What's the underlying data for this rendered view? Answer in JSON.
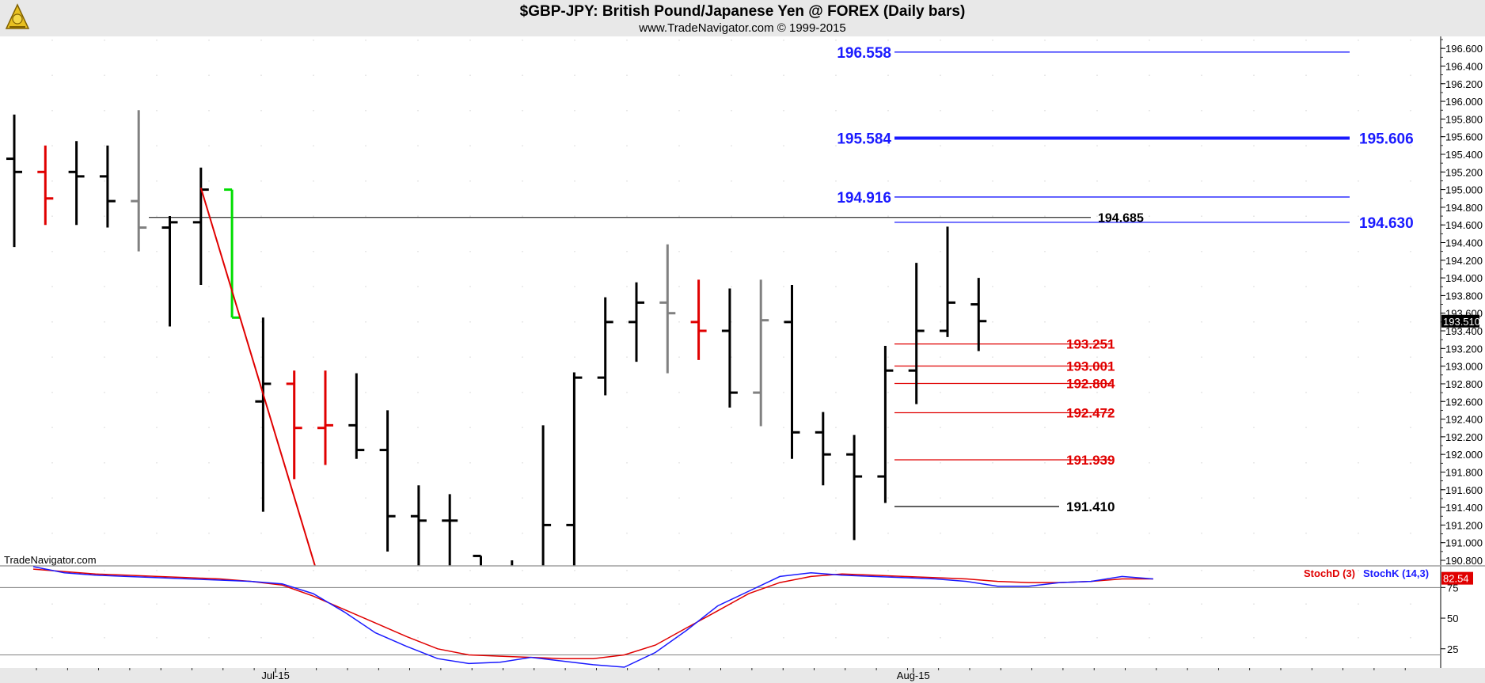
{
  "header": {
    "title": "$GBP-JPY:  British Pound/Japanese Yen @ FOREX  (Daily bars)",
    "subtitle": "www.TradeNavigator.com © 1999-2015",
    "logo_icon": "sextant-logo-icon"
  },
  "watermark": "TradeNavigator.com",
  "last_price_label": "193.510",
  "colors": {
    "up": "#000000",
    "down": "#e00000",
    "neutral": "#808080",
    "highlight": "#00dd00",
    "resistance": "#1a1aff",
    "support": "#e00000",
    "stoch_d": "#e00000",
    "stoch_k": "#1a1aff"
  },
  "chart_data": [
    {
      "type": "ohlc",
      "title": "$GBP-JPY:  British Pound/Japanese Yen @ FOREX  (Daily bars)",
      "ylim": [
        190.8,
        196.7
      ],
      "y_ticks": [
        "196.600",
        "196.400",
        "196.200",
        "196.000",
        "195.800",
        "195.600",
        "195.400",
        "195.200",
        "195.000",
        "194.800",
        "194.600",
        "194.400",
        "194.200",
        "194.000",
        "193.800",
        "193.600",
        "193.400",
        "193.200",
        "193.000",
        "192.800",
        "192.600",
        "192.400",
        "192.200",
        "192.000",
        "191.800",
        "191.600",
        "191.400",
        "191.200",
        "191.000",
        "190.800"
      ],
      "x_ticks": [
        {
          "label": "Jul-15",
          "bar": 8.4
        },
        {
          "label": "Aug-15",
          "bar": 28.9
        }
      ],
      "bars": [
        {
          "o": 195.35,
          "h": 195.85,
          "l": 194.35,
          "c": 195.2,
          "color": "up"
        },
        {
          "o": 195.2,
          "h": 195.5,
          "l": 194.6,
          "c": 194.9,
          "color": "down"
        },
        {
          "o": 195.2,
          "h": 195.55,
          "l": 194.6,
          "c": 195.15,
          "color": "up"
        },
        {
          "o": 195.15,
          "h": 195.5,
          "l": 194.57,
          "c": 194.87,
          "color": "up"
        },
        {
          "o": 194.87,
          "h": 195.9,
          "l": 194.3,
          "c": 194.57,
          "color": "neutral"
        },
        {
          "o": 194.57,
          "h": 194.7,
          "l": 193.45,
          "c": 194.63,
          "color": "up"
        },
        {
          "o": 194.63,
          "h": 195.25,
          "l": 193.92,
          "c": 195.0,
          "color": "up"
        },
        {
          "o": 195.0,
          "h": 195.0,
          "l": 193.55,
          "c": 193.55,
          "color": "highlight"
        },
        {
          "o": 192.6,
          "h": 193.55,
          "l": 191.35,
          "c": 192.8,
          "color": "up"
        },
        {
          "o": 192.8,
          "h": 192.95,
          "l": 191.72,
          "c": 192.3,
          "color": "down"
        },
        {
          "o": 192.3,
          "h": 192.95,
          "l": 191.88,
          "c": 192.33,
          "color": "down"
        },
        {
          "o": 192.33,
          "h": 192.92,
          "l": 191.95,
          "c": 192.05,
          "color": "up"
        },
        {
          "o": 192.05,
          "h": 192.5,
          "l": 190.9,
          "c": 191.3,
          "color": "up"
        },
        {
          "o": 191.3,
          "h": 191.65,
          "l": 190.6,
          "c": 191.25,
          "color": "up"
        },
        {
          "o": 191.25,
          "h": 191.55,
          "l": 190.4,
          "c": 191.25,
          "color": "up"
        },
        {
          "o": 190.85,
          "h": 190.85,
          "l": 190.2,
          "c": 190.5,
          "color": "up"
        },
        {
          "o": 190.6,
          "h": 190.8,
          "l": 190.1,
          "c": 190.5,
          "color": "up"
        },
        {
          "o": 190.6,
          "h": 192.33,
          "l": 190.5,
          "c": 191.2,
          "color": "up"
        },
        {
          "o": 191.2,
          "h": 192.93,
          "l": 190.7,
          "c": 192.87,
          "color": "up"
        },
        {
          "o": 192.87,
          "h": 193.78,
          "l": 192.67,
          "c": 193.5,
          "color": "up"
        },
        {
          "o": 193.5,
          "h": 193.95,
          "l": 193.05,
          "c": 193.72,
          "color": "up"
        },
        {
          "o": 193.72,
          "h": 194.38,
          "l": 192.92,
          "c": 193.6,
          "color": "neutral"
        },
        {
          "o": 193.5,
          "h": 193.98,
          "l": 193.07,
          "c": 193.4,
          "color": "down"
        },
        {
          "o": 193.4,
          "h": 193.88,
          "l": 192.53,
          "c": 192.7,
          "color": "up"
        },
        {
          "o": 192.7,
          "h": 193.98,
          "l": 192.32,
          "c": 193.52,
          "color": "neutral"
        },
        {
          "o": 193.5,
          "h": 193.92,
          "l": 191.95,
          "c": 192.25,
          "color": "up"
        },
        {
          "o": 192.25,
          "h": 192.48,
          "l": 191.65,
          "c": 192.0,
          "color": "up"
        },
        {
          "o": 192.0,
          "h": 192.22,
          "l": 191.03,
          "c": 191.75,
          "color": "up"
        },
        {
          "o": 191.75,
          "h": 193.23,
          "l": 191.45,
          "c": 192.95,
          "color": "up"
        },
        {
          "o": 192.95,
          "h": 194.17,
          "l": 192.57,
          "c": 193.4,
          "color": "up"
        },
        {
          "o": 193.4,
          "h": 194.58,
          "l": 193.33,
          "c": 193.72,
          "color": "up"
        },
        {
          "o": 193.7,
          "h": 194.0,
          "l": 193.17,
          "c": 193.51,
          "color": "up"
        }
      ],
      "trendline": {
        "from": {
          "bar": 6,
          "y": 195.02
        },
        "to": {
          "bar": 9.7,
          "y": 190.7
        }
      },
      "resistance_levels": [
        {
          "value": 196.558,
          "label": "196.558",
          "right_label": ""
        },
        {
          "value": 195.584,
          "label": "195.584",
          "right_label": "195.606",
          "thick": true
        },
        {
          "value": 194.916,
          "label": "194.916",
          "right_label": ""
        },
        {
          "value": 194.63,
          "label": "",
          "right_label": "194.630"
        }
      ],
      "support_levels": [
        {
          "value": 193.251,
          "label": "193.251"
        },
        {
          "value": 193.001,
          "label": "193.001"
        },
        {
          "value": 192.804,
          "label": "192.804"
        },
        {
          "value": 192.472,
          "label": "192.472"
        },
        {
          "value": 191.939,
          "label": "191.939"
        }
      ],
      "black_levels": [
        {
          "value": 194.685,
          "label": "194.685"
        },
        {
          "value": 191.41,
          "label": "191.410"
        }
      ]
    },
    {
      "type": "line",
      "ylim": [
        10,
        92
      ],
      "y_ticks": [
        "75",
        "50",
        "25"
      ],
      "reference_lines": [
        75,
        20
      ],
      "last_value_label": "82.54",
      "series": [
        {
          "name": "StochD (3)",
          "color": "stoch_d",
          "values": [
            90,
            88,
            86,
            85,
            84,
            83,
            82,
            80,
            77,
            68,
            57,
            46,
            35,
            25,
            20,
            19,
            18,
            17,
            17,
            20,
            28,
            42,
            56,
            70,
            79,
            84,
            86,
            85,
            84,
            83,
            82,
            80,
            79,
            79,
            80,
            82,
            82
          ]
        },
        {
          "name": "StochK (14,3)",
          "color": "stoch_k",
          "values": [
            92,
            87,
            85,
            84,
            83,
            82,
            81,
            80,
            78,
            70,
            55,
            38,
            27,
            17,
            13,
            14,
            18,
            15,
            12,
            10,
            22,
            40,
            60,
            72,
            84,
            87,
            85,
            84,
            83,
            82,
            80,
            76,
            76,
            79,
            80,
            84,
            82
          ]
        }
      ]
    }
  ]
}
